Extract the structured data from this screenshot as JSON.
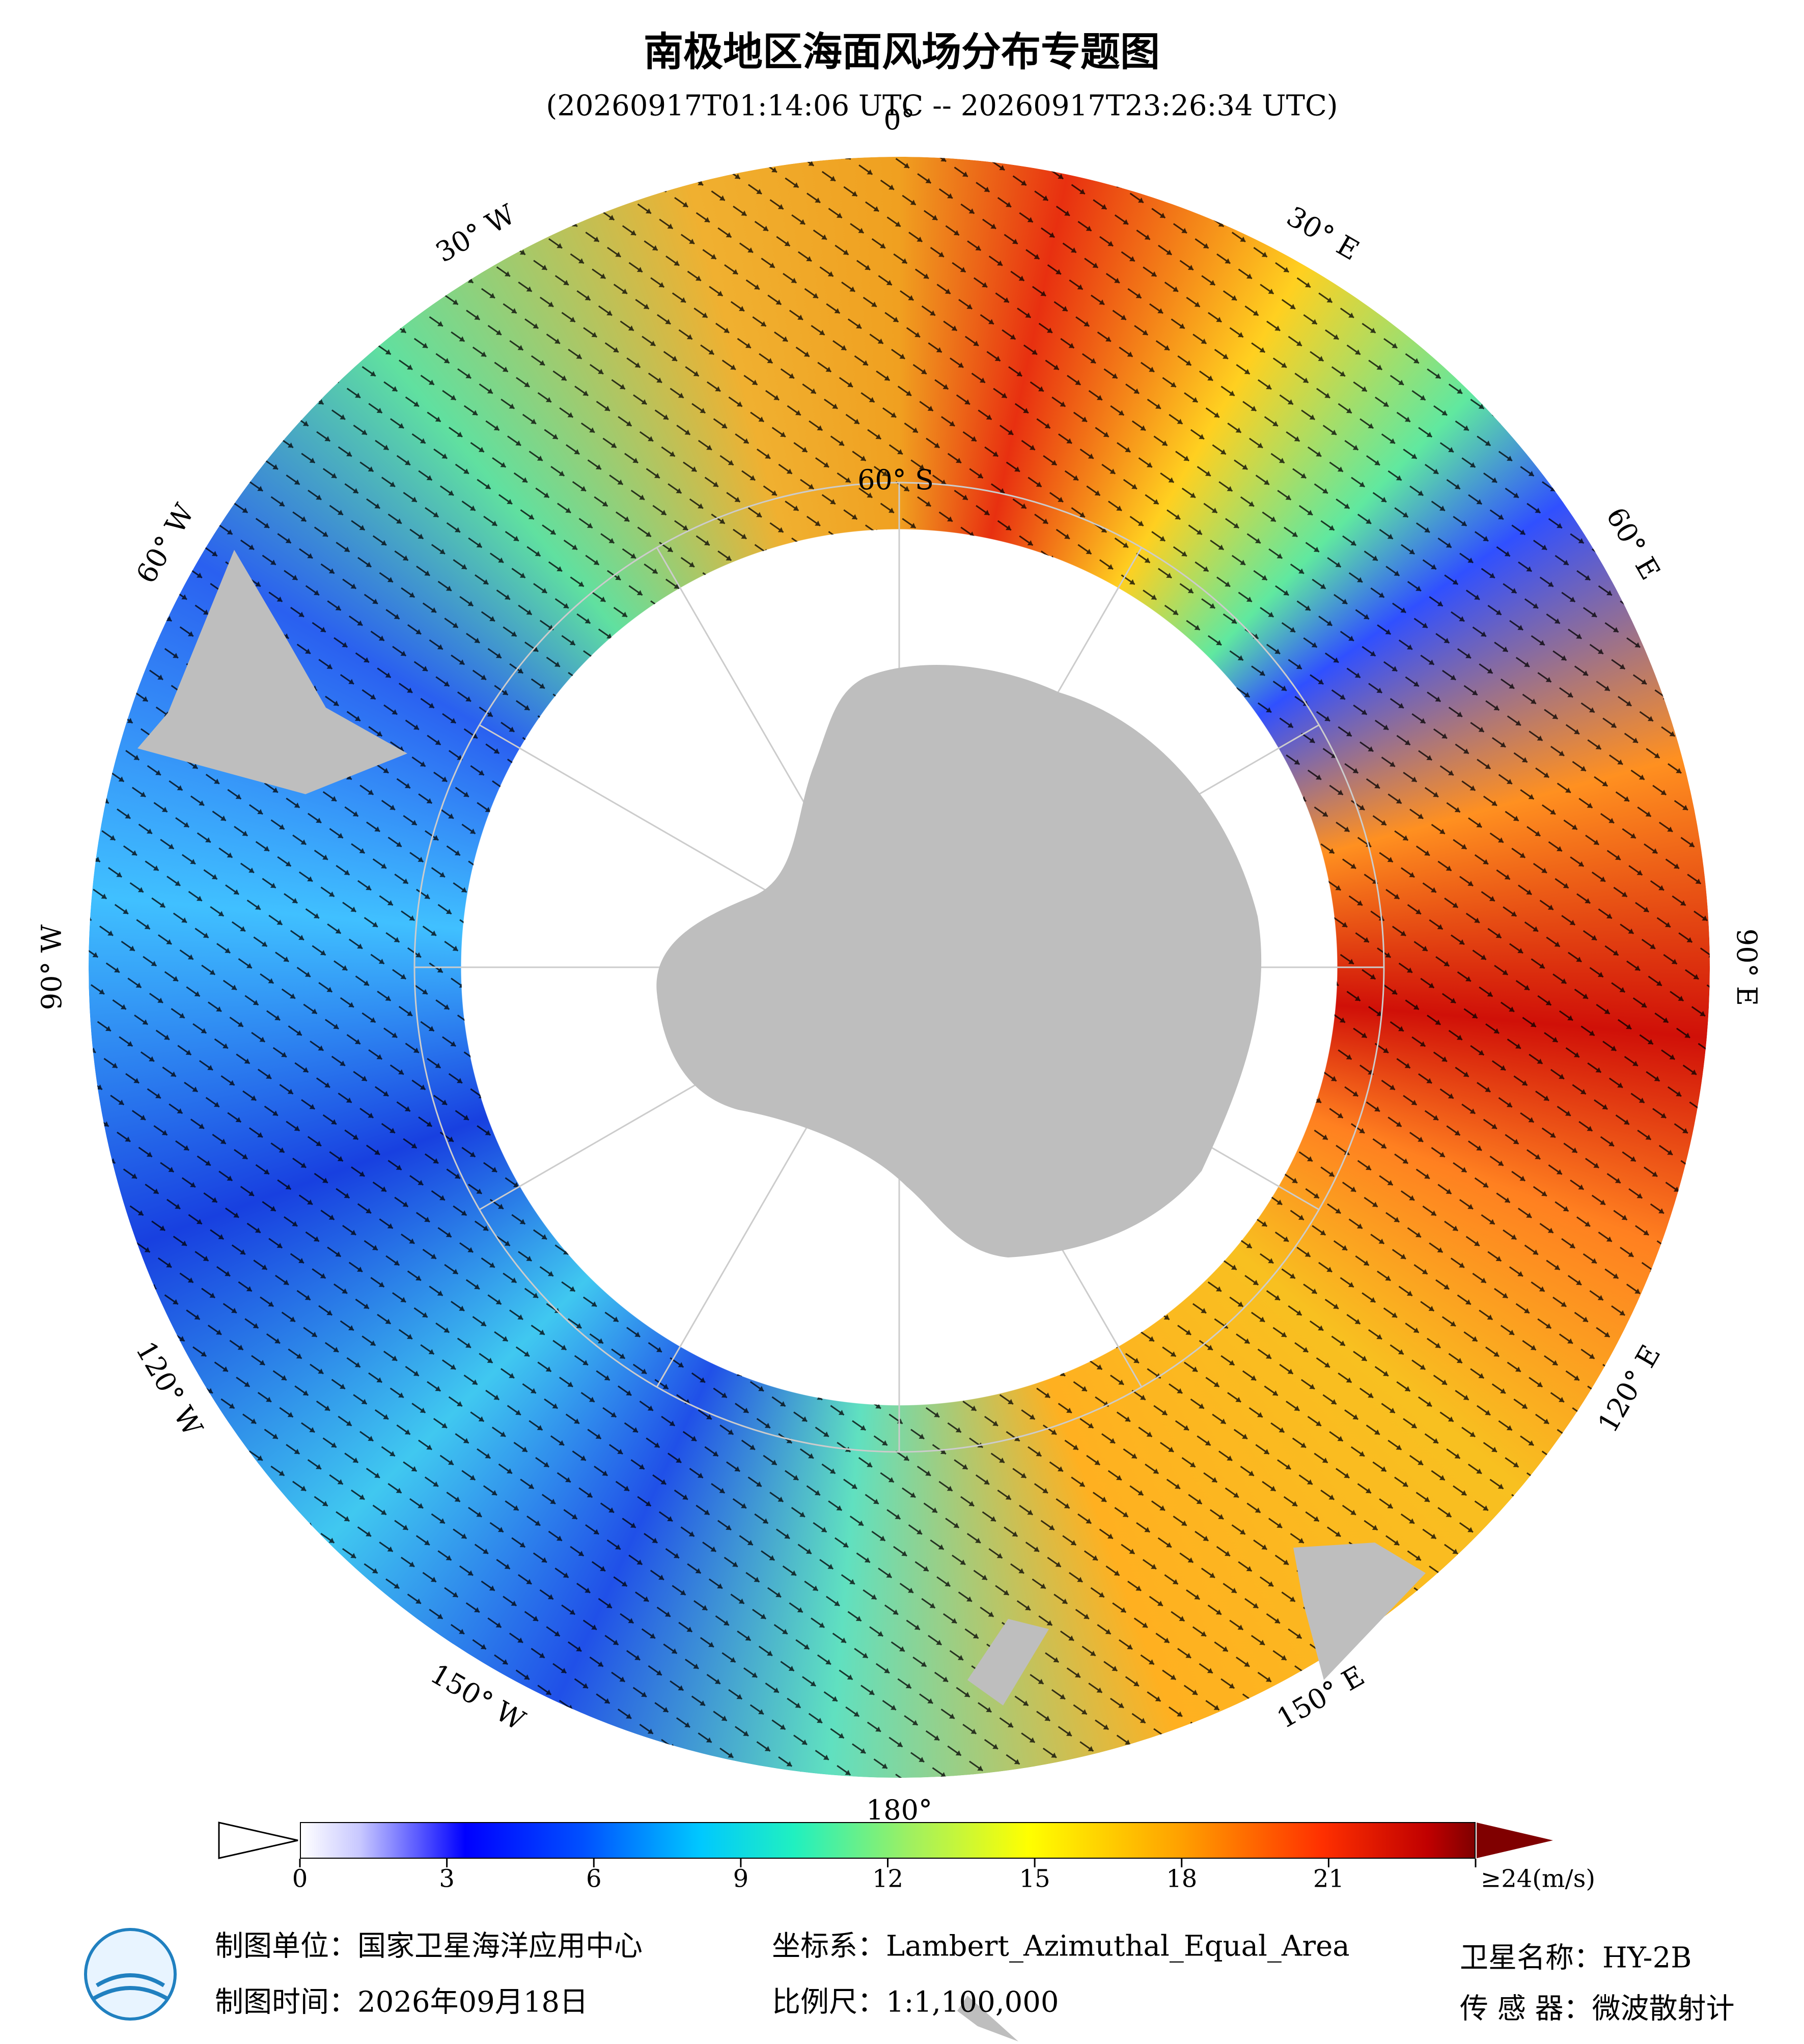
{
  "header": {
    "title": "南极地区海面风场分布专题图",
    "subtitle": "(20260917T01:14:06 UTC -- 20260917T23:26:34 UTC)"
  },
  "map": {
    "longitude_labels": [
      "0°",
      "30° E",
      "60° E",
      "90° E",
      "120° E",
      "150° E",
      "180°",
      "150° W",
      "120° W",
      "90° W",
      "60° W",
      "30° W"
    ],
    "latitude_label": "60° S"
  },
  "colorbar": {
    "range": [
      0,
      24
    ],
    "ticks": [
      0,
      3,
      6,
      9,
      12,
      15,
      18,
      21,
      {
        "value": 24,
        "label": "≥24(m/s)"
      }
    ]
  },
  "footer": {
    "unit": "制图单位：国家卫星海洋应用中心",
    "date": "制图时间：2026年09月18日",
    "crs": "坐标系：Lambert_Azimuthal_Equal_Area",
    "scale": "比例尺：1:1,100,000",
    "satellite": "卫星名称：HY-2B",
    "sensor": "传 感 器：微波散射计"
  }
}
